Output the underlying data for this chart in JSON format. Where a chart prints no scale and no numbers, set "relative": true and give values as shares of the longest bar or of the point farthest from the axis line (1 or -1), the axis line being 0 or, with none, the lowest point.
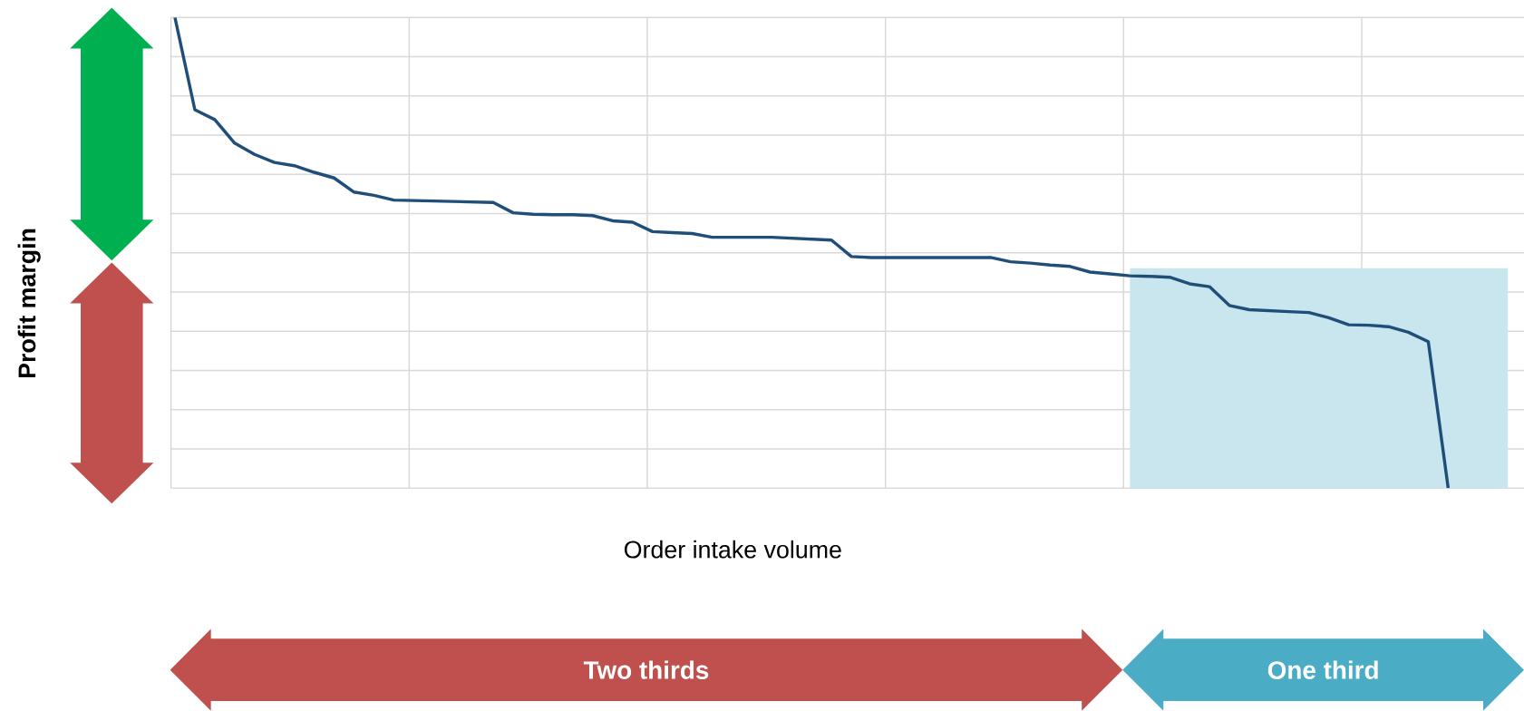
{
  "chart_data": {
    "type": "line",
    "relative": true,
    "grid": true,
    "xlabel": "Order intake volume",
    "annotations": [
      "Two thirds",
      "One third",
      "Profit margin"
    ],
    "categories": [
      null,
      null,
      null,
      null,
      null,
      null,
      null,
      null,
      null,
      null,
      null,
      null,
      null,
      null,
      null,
      null,
      null,
      null,
      null,
      null,
      null,
      null,
      null,
      null,
      null,
      null,
      null,
      null,
      null,
      null,
      null,
      null,
      null,
      null,
      null,
      null,
      null,
      null,
      null,
      null,
      null,
      null,
      null,
      null,
      null,
      null,
      null,
      null,
      null,
      null,
      null,
      null,
      null,
      null,
      null,
      null,
      null,
      null,
      null,
      null,
      null,
      null,
      null,
      null,
      null,
      null,
      null,
      null
    ],
    "series": [
      {
        "type": "area",
        "color": "#c9e5ed",
        "values": [
          null,
          null,
          null,
          null,
          null,
          null,
          null,
          null,
          null,
          null,
          null,
          null,
          null,
          null,
          null,
          null,
          null,
          null,
          null,
          null,
          null,
          null,
          null,
          null,
          null,
          null,
          null,
          null,
          null,
          null,
          null,
          null,
          null,
          null,
          null,
          null,
          null,
          null,
          null,
          null,
          null,
          null,
          null,
          null,
          null,
          null,
          null,
          null,
          0.467,
          0.467,
          0.467,
          0.467,
          0.467,
          0.467,
          0.467,
          0.467,
          0.467,
          0.467,
          0.467,
          0.467,
          0.467,
          0.467,
          0.467,
          0.467,
          0.467,
          0.467,
          0.467,
          0.467
        ]
      },
      {
        "color": "#1f4e79",
        "values": [
          1.0,
          0.804,
          0.783,
          0.733,
          0.709,
          0.692,
          0.685,
          0.671,
          0.659,
          0.629,
          0.622,
          0.612,
          0.611,
          0.61,
          0.609,
          0.608,
          0.607,
          0.585,
          0.582,
          0.581,
          0.581,
          0.579,
          0.568,
          0.565,
          0.545,
          0.543,
          0.541,
          0.533,
          0.533,
          0.533,
          0.533,
          0.531,
          0.529,
          0.527,
          0.492,
          0.49,
          0.49,
          0.49,
          0.49,
          0.49,
          0.49,
          0.49,
          0.481,
          0.478,
          0.474,
          0.471,
          0.459,
          0.455,
          0.451,
          0.45,
          0.448,
          0.434,
          0.428,
          0.388,
          0.379,
          0.377,
          0.375,
          0.373,
          0.362,
          0.347,
          0.346,
          0.343,
          0.331,
          0.311,
          0,
          null,
          null,
          null
        ]
      }
    ]
  }
}
